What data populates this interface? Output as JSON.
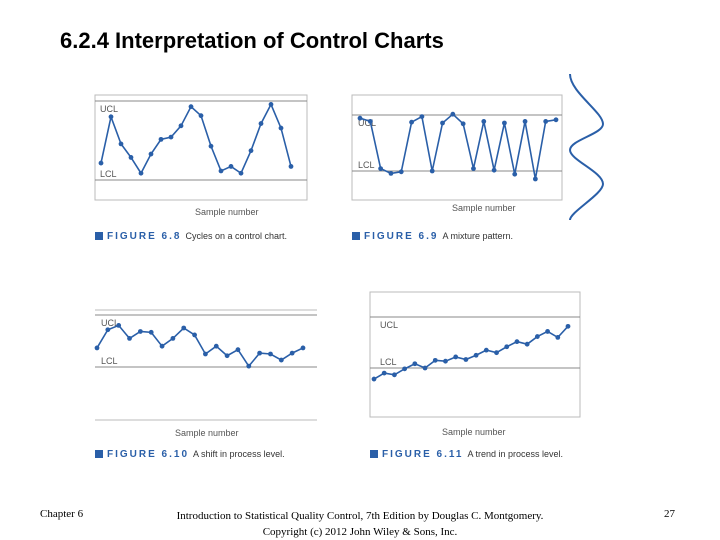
{
  "slide": {
    "title": "6.2.4 Interpretation of Control Charts"
  },
  "colors": {
    "accent": "#2a5fa8",
    "line": "#2a5fa8",
    "limit": "#888888"
  },
  "figures": [
    {
      "id": "fig-6-8",
      "ucl_label": "UCL",
      "lcl_label": "LCL",
      "xlabel": "Sample number",
      "caption_label": "FIGURE 6.8",
      "caption_text": "Cycles on a control chart.",
      "chart_data": {
        "type": "line",
        "title": "",
        "xlabel": "Sample number",
        "ylabel": "",
        "ylim": [
          0,
          10
        ],
        "ucl": 9,
        "lcl": 2,
        "x": [
          1,
          2,
          3,
          4,
          5,
          6,
          7,
          8,
          9,
          10,
          11,
          12,
          13,
          14,
          15,
          16,
          17,
          18,
          19,
          20
        ],
        "values": [
          3.5,
          7.6,
          5.2,
          4.0,
          2.6,
          4.3,
          5.6,
          5.8,
          6.8,
          8.5,
          7.7,
          5.0,
          2.8,
          3.2,
          2.6,
          4.6,
          7.0,
          8.7,
          6.6,
          3.2
        ]
      }
    },
    {
      "id": "fig-6-9",
      "ucl_label": "UCL",
      "lcl_label": "LCL",
      "xlabel": "Sample number",
      "caption_label": "FIGURE 6.9",
      "caption_text": "A mixture pattern.",
      "chart_data": {
        "type": "line",
        "title": "",
        "xlabel": "Sample number",
        "ylabel": "",
        "ylim": [
          0,
          10
        ],
        "ucl": 9,
        "lcl": 2,
        "x": [
          1,
          2,
          3,
          4,
          5,
          6,
          7,
          8,
          9,
          10,
          11,
          12,
          13,
          14,
          15,
          16,
          17,
          18,
          19,
          20
        ],
        "values": [
          8.6,
          8.2,
          2.3,
          1.7,
          1.9,
          8.1,
          8.8,
          2.0,
          8.0,
          9.1,
          7.9,
          2.3,
          8.2,
          2.1,
          8.0,
          1.6,
          8.2,
          1.0,
          8.2,
          8.4
        ]
      }
    },
    {
      "id": "fig-6-10",
      "ucl_label": "UCL",
      "lcl_label": "LCL",
      "xlabel": "Sample number",
      "caption_label": "FIGURE 6.10",
      "caption_text": "A shift in process level.",
      "chart_data": {
        "type": "line",
        "title": "",
        "xlabel": "Sample number",
        "ylabel": "",
        "ylim": [
          0,
          10
        ],
        "ucl": 8,
        "lcl": 2,
        "x": [
          1,
          2,
          3,
          4,
          5,
          6,
          7,
          8,
          9,
          10,
          11,
          12,
          13,
          14,
          15,
          16,
          17,
          18,
          19,
          20
        ],
        "values": [
          4.2,
          6.3,
          6.8,
          5.3,
          6.1,
          6.0,
          4.4,
          5.3,
          6.5,
          5.7,
          3.5,
          4.4,
          3.3,
          4.0,
          2.1,
          3.6,
          3.5,
          2.8,
          3.6,
          4.2
        ]
      }
    },
    {
      "id": "fig-6-11",
      "ucl_label": "UCL",
      "lcl_label": "LCL",
      "xlabel": "Sample number",
      "caption_label": "FIGURE 6.11",
      "caption_text": "A trend in process level.",
      "chart_data": {
        "type": "line",
        "title": "",
        "xlabel": "Sample number",
        "ylabel": "",
        "ylim": [
          0,
          10
        ],
        "ucl": 8.5,
        "lcl": 2.5,
        "x": [
          1,
          2,
          3,
          4,
          5,
          6,
          7,
          8,
          9,
          10,
          11,
          12,
          13,
          14,
          15,
          16,
          17,
          18,
          19,
          20
        ],
        "values": [
          1.2,
          1.9,
          1.7,
          2.4,
          3.0,
          2.5,
          3.4,
          3.3,
          3.8,
          3.5,
          4.0,
          4.6,
          4.3,
          5.0,
          5.6,
          5.3,
          6.2,
          6.8,
          6.1,
          7.4
        ]
      }
    }
  ],
  "footer": {
    "chapter": "Chapter 6",
    "source_line1": "Introduction to Statistical Quality Control, 7th Edition by Douglas C. Montgomery.",
    "source_line2": "Copyright (c) 2012 John Wiley & Sons, Inc.",
    "page_number": "27"
  }
}
